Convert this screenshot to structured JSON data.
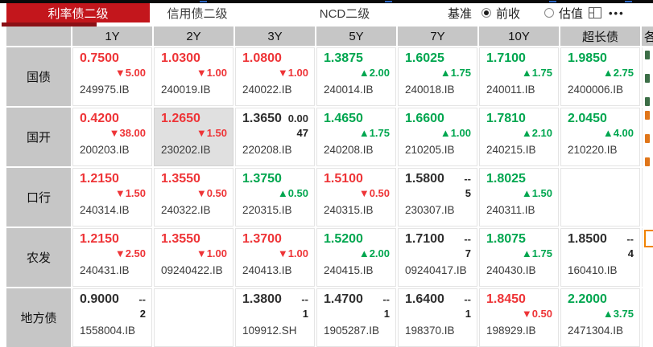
{
  "tabs": [
    {
      "label": "利率债二级",
      "active": true
    },
    {
      "label": "信用债二级",
      "active": false
    },
    {
      "label": "NCD二级",
      "active": false
    }
  ],
  "benchmark": {
    "label": "基准",
    "options": [
      {
        "label": "前收",
        "selected": true
      },
      {
        "label": "估值",
        "selected": false
      }
    ]
  },
  "toolbar": {
    "more_label": "•••"
  },
  "colors": {
    "red": "#ee3437",
    "green": "#00a64f",
    "tab_red": "#c3161c",
    "underline_red": "#8b1016",
    "header_bg": "#c6c6c6",
    "selected_bg": "#e0e0e0",
    "orange": "#f08300"
  },
  "table": {
    "columns": [
      "1Y",
      "2Y",
      "3Y",
      "5Y",
      "7Y",
      "10Y",
      "超长债"
    ],
    "partial_column_header": "各",
    "rows": [
      {
        "label": "国债",
        "cells": [
          {
            "price": "0.7500",
            "tone": "down",
            "change": "5.00",
            "code": "249975.IB"
          },
          {
            "price": "1.0300",
            "tone": "down",
            "change": "1.00",
            "code": "240019.IB"
          },
          {
            "price": "1.0800",
            "tone": "down",
            "change": "1.00",
            "code": "240022.IB"
          },
          {
            "price": "1.3875",
            "tone": "up",
            "change": "2.00",
            "code": "240014.IB"
          },
          {
            "price": "1.6025",
            "tone": "up",
            "change": "1.75",
            "code": "240018.IB"
          },
          {
            "price": "1.7100",
            "tone": "up",
            "change": "1.75",
            "code": "240011.IB"
          },
          {
            "price": "1.9850",
            "tone": "up",
            "change": "2.75",
            "code": "2400006.IB"
          }
        ]
      },
      {
        "label": "国开",
        "cells": [
          {
            "price": "0.4200",
            "tone": "down",
            "change": "38.00",
            "code": "200203.IB"
          },
          {
            "price": "1.2650",
            "tone": "down",
            "change": "1.50",
            "code": "230202.IB",
            "selected": true
          },
          {
            "price": "1.3650",
            "tone": "flat",
            "flat": "0.00",
            "count": "47",
            "code": "220208.IB"
          },
          {
            "price": "1.4650",
            "tone": "up",
            "change": "1.75",
            "code": "240208.IB"
          },
          {
            "price": "1.6600",
            "tone": "up",
            "change": "1.00",
            "code": "210205.IB"
          },
          {
            "price": "1.7810",
            "tone": "up",
            "change": "2.10",
            "code": "240215.IB"
          },
          {
            "price": "2.0450",
            "tone": "up",
            "change": "4.00",
            "code": "210220.IB"
          }
        ]
      },
      {
        "label": "口行",
        "cells": [
          {
            "price": "1.2150",
            "tone": "down",
            "change": "1.50",
            "code": "240314.IB"
          },
          {
            "price": "1.3550",
            "tone": "down",
            "change": "0.50",
            "code": "240322.IB"
          },
          {
            "price": "1.3750",
            "tone": "up",
            "change": "0.50",
            "code": "220315.IB"
          },
          {
            "price": "1.5100",
            "tone": "down",
            "change": "0.50",
            "code": "240315.IB"
          },
          {
            "price": "1.5800",
            "tone": "flat",
            "flat": "--",
            "count": "5",
            "code": "230307.IB"
          },
          {
            "price": "1.8025",
            "tone": "up",
            "change": "1.50",
            "code": "240311.IB"
          },
          null
        ]
      },
      {
        "label": "农发",
        "cells": [
          {
            "price": "1.2150",
            "tone": "down",
            "change": "2.50",
            "code": "240431.IB"
          },
          {
            "price": "1.3550",
            "tone": "down",
            "change": "1.00",
            "code": "09240422.IB"
          },
          {
            "price": "1.3700",
            "tone": "down",
            "change": "1.00",
            "code": "240413.IB"
          },
          {
            "price": "1.5200",
            "tone": "up",
            "change": "2.00",
            "code": "240415.IB"
          },
          {
            "price": "1.7100",
            "tone": "flat",
            "flat": "--",
            "count": "7",
            "code": "09240417.IB"
          },
          {
            "price": "1.8075",
            "tone": "up",
            "change": "1.75",
            "code": "240430.IB"
          },
          {
            "price": "1.8500",
            "tone": "flat",
            "flat": "--",
            "count": "4",
            "code": "160410.IB"
          }
        ]
      },
      {
        "label": "地方债",
        "cells": [
          {
            "price": "0.9000",
            "tone": "flat",
            "flat": "--",
            "count": "2",
            "code": "1558004.IB"
          },
          null,
          {
            "price": "1.3800",
            "tone": "flat",
            "flat": "--",
            "count": "1",
            "code": "109912.SH"
          },
          {
            "price": "1.4700",
            "tone": "flat",
            "flat": "--",
            "count": "1",
            "code": "1905287.IB"
          },
          {
            "price": "1.6400",
            "tone": "flat",
            "flat": "--",
            "count": "1",
            "code": "198370.IB"
          },
          {
            "price": "1.8450",
            "tone": "down",
            "change": "0.50",
            "code": "198929.IB"
          },
          {
            "price": "2.2000",
            "tone": "up",
            "change": "3.75",
            "code": "2471304.IB"
          }
        ]
      }
    ]
  }
}
